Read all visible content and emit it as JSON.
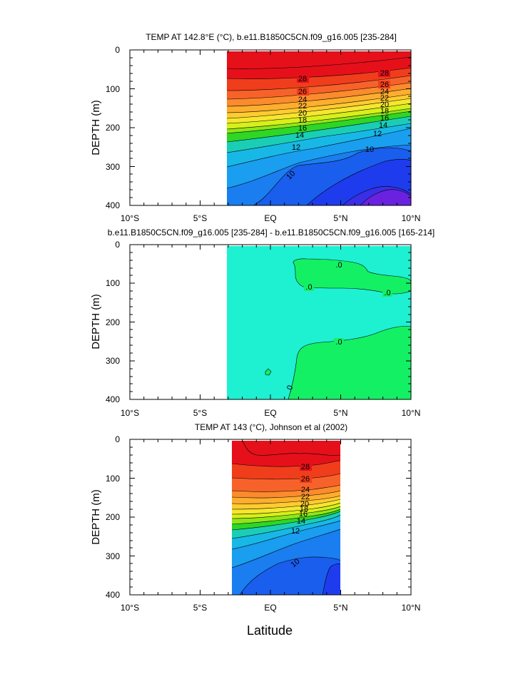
{
  "figure": {
    "x_title": "Latitude"
  },
  "chart_data": [
    {
      "type": "contour",
      "title": "TEMP AT 142.8°E (°C), b.e11.B1850C5CN.f09_g16.005 [235-284]",
      "xlabel": "Latitude",
      "ylabel": "DEPTH (m)",
      "xlim": [
        -10,
        10
      ],
      "ylim": [
        400,
        0
      ],
      "x_tick_labels": [
        "10°S",
        "5°S",
        "EQ",
        "5°N",
        "10°N"
      ],
      "y_tick_labels": [
        "0",
        "100",
        "200",
        "300",
        "400"
      ],
      "data_extent": {
        "lat": [
          -3,
          10
        ],
        "depth": [
          5,
          400
        ]
      },
      "contour_levels": [
        28,
        26,
        24,
        22,
        20,
        18,
        16,
        14,
        12,
        10
      ],
      "contour_labels": [
        "28",
        "26",
        "24",
        "22",
        "20",
        "18",
        "16",
        "14",
        "12",
        "10"
      ],
      "isotherm_depth_m": [
        {
          "level": 28,
          "lat": [
            -3,
            2,
            6,
            10
          ],
          "depth": [
            72,
            76,
            66,
            46
          ]
        },
        {
          "level": 26,
          "lat": [
            -3,
            2,
            6,
            10
          ],
          "depth": [
            102,
            103,
            95,
            78
          ]
        },
        {
          "level": 24,
          "lat": [
            -3,
            2,
            6,
            10
          ],
          "depth": [
            124,
            121,
            111,
            96
          ]
        },
        {
          "level": 22,
          "lat": [
            -3,
            2,
            6,
            10
          ],
          "depth": [
            142,
            136,
            126,
            112
          ]
        },
        {
          "level": 20,
          "lat": [
            -3,
            2,
            6,
            10
          ],
          "depth": [
            160,
            152,
            141,
            127
          ]
        },
        {
          "level": 18,
          "lat": [
            -3,
            2,
            6,
            10
          ],
          "depth": [
            180,
            167,
            155,
            141
          ]
        },
        {
          "level": 16,
          "lat": [
            -3,
            2,
            6,
            10
          ],
          "depth": [
            203,
            185,
            170,
            154
          ]
        },
        {
          "level": 14,
          "lat": [
            -3,
            1,
            3,
            6,
            10
          ],
          "depth": [
            232,
            210,
            197,
            186,
            170
          ]
        },
        {
          "level": 12,
          "lat": [
            -3,
            1,
            3,
            6,
            10
          ],
          "depth": [
            270,
            247,
            229,
            211,
            198
          ]
        },
        {
          "level": 10,
          "lat": [
            -3,
            1,
            3,
            6,
            10
          ],
          "depth": [
            400,
            335,
            268,
            245,
            250
          ]
        }
      ]
    },
    {
      "type": "contour",
      "title": "b.e11.B1850C5CN.f09_g16.005 [235-284] - b.e11.B1850C5CN.f09_g16.005 [165-214]",
      "xlabel": "Latitude",
      "ylabel": "DEPTH (m)",
      "xlim": [
        -10,
        10
      ],
      "ylim": [
        400,
        0
      ],
      "x_tick_labels": [
        "10°S",
        "5°S",
        "EQ",
        "5°N",
        "10°N"
      ],
      "y_tick_labels": [
        "0",
        "100",
        "200",
        "300",
        "400"
      ],
      "data_extent": {
        "lat": [
          -3,
          10
        ],
        "depth": [
          5,
          400
        ]
      },
      "contour_levels": [
        0
      ],
      "contour_labels": [
        ".0",
        ".0",
        ".0",
        ".0",
        ".0"
      ]
    },
    {
      "type": "contour",
      "title": "TEMP AT 143 (°C), Johnson et al (2002)",
      "xlabel": "Latitude",
      "ylabel": "DEPTH (m)",
      "xlim": [
        -10,
        10
      ],
      "ylim": [
        400,
        0
      ],
      "x_tick_labels": [
        "10°S",
        "5°S",
        "EQ",
        "5°N",
        "10°N"
      ],
      "y_tick_labels": [
        "0",
        "100",
        "200",
        "300",
        "400"
      ],
      "data_extent": {
        "lat": [
          -2.7,
          5
        ],
        "depth": [
          5,
          400
        ]
      },
      "contour_levels": [
        28,
        26,
        24,
        22,
        20,
        18,
        16,
        14,
        12,
        10
      ],
      "contour_labels": [
        "28",
        "26",
        "24",
        "22",
        "20",
        "18",
        "16",
        "14",
        "12",
        "10"
      ],
      "isotherm_depth_m": [
        {
          "level": 28,
          "lat": [
            -2.7,
            0,
            2.5,
            5
          ],
          "depth": [
            62,
            68,
            68,
            62
          ]
        },
        {
          "level": 26,
          "lat": [
            -2.7,
            0,
            2.5,
            5
          ],
          "depth": [
            95,
            98,
            94,
            90
          ]
        },
        {
          "level": 24,
          "lat": [
            -2.7,
            0,
            2.5,
            5
          ],
          "depth": [
            128,
            127,
            122,
            116
          ]
        },
        {
          "level": 22,
          "lat": [
            -2.7,
            0,
            2.5,
            5
          ],
          "depth": [
            152,
            150,
            143,
            135
          ]
        },
        {
          "level": 20,
          "lat": [
            -2.7,
            0,
            2.5,
            5
          ],
          "depth": [
            170,
            168,
            160,
            150
          ]
        },
        {
          "level": 18,
          "lat": [
            -2.7,
            0,
            2.5,
            5
          ],
          "depth": [
            185,
            182,
            172,
            160
          ]
        },
        {
          "level": 16,
          "lat": [
            -2.7,
            0,
            2.5,
            5
          ],
          "depth": [
            200,
            195,
            184,
            172
          ]
        },
        {
          "level": 14,
          "lat": [
            -2.7,
            0,
            2.5,
            5
          ],
          "depth": [
            222,
            214,
            201,
            186
          ]
        },
        {
          "level": 12,
          "lat": [
            -2.7,
            0,
            2.5,
            5
          ],
          "depth": [
            262,
            246,
            226,
            208
          ]
        },
        {
          "level": 10,
          "lat": [
            -2.7,
            0,
            2,
            3.5,
            5
          ],
          "depth": [
            400,
            360,
            320,
            292,
            285
          ]
        }
      ]
    }
  ],
  "colors": {
    "warm_to_cold": [
      "#e6101b",
      "#f03d1c",
      "#f7622a",
      "#fb8b2c",
      "#fdae2e",
      "#fecb30",
      "#f5e62f",
      "#d6f01a",
      "#8ee61a",
      "#2ed626",
      "#1aceb6",
      "#18b8e6",
      "#1a9ef0",
      "#1a7ef0",
      "#1a5eee",
      "#1e3cee",
      "#3a2fe6",
      "#6a22e0"
    ],
    "diff_fill": "#1ef0d2",
    "diff_positive": "#14f064"
  }
}
